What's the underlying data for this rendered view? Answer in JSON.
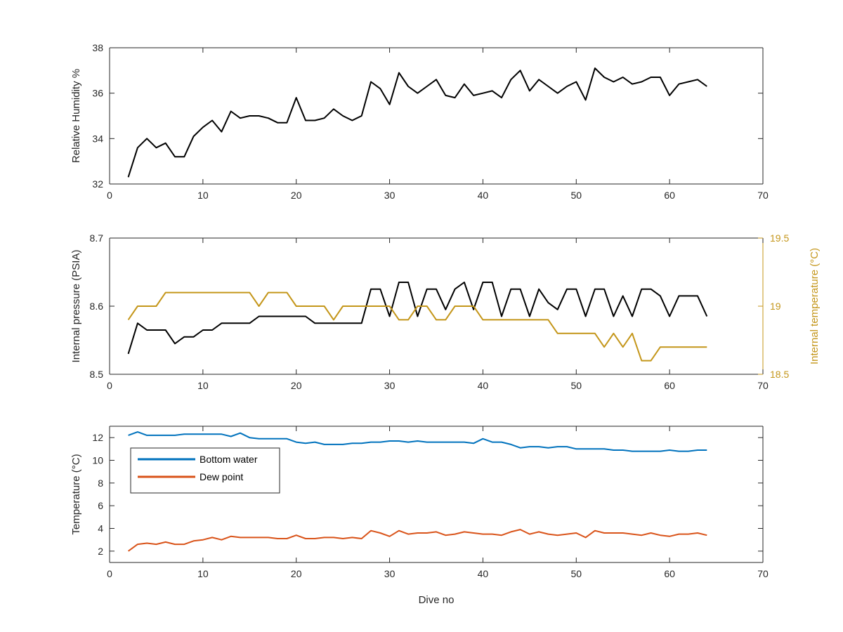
{
  "chart_data": [
    {
      "type": "line",
      "title": "",
      "xlabel": "",
      "ylabel": "Relative Humidity %",
      "xlim": [
        0,
        70
      ],
      "ylim": [
        32,
        38
      ],
      "xticks": [
        0,
        10,
        20,
        30,
        40,
        50,
        60,
        70
      ],
      "yticks": [
        32,
        34,
        36,
        38
      ],
      "grid": false,
      "series": [
        {
          "color": "#000000",
          "x": [
            2,
            3,
            4,
            5,
            6,
            7,
            8,
            9,
            10,
            11,
            12,
            13,
            14,
            15,
            16,
            17,
            18,
            19,
            20,
            21,
            22,
            23,
            24,
            25,
            26,
            27,
            28,
            29,
            30,
            31,
            32,
            33,
            34,
            35,
            36,
            37,
            38,
            39,
            40,
            41,
            42,
            43,
            44,
            45,
            46,
            47,
            48,
            49,
            50,
            51,
            52,
            53,
            54,
            55,
            56,
            57,
            58,
            59,
            60,
            61,
            62,
            63,
            64
          ],
          "y": [
            32.3,
            33.6,
            34.0,
            33.6,
            33.8,
            33.2,
            33.2,
            34.1,
            34.5,
            34.8,
            34.3,
            35.2,
            34.9,
            35.0,
            35.0,
            34.9,
            34.7,
            34.7,
            35.8,
            34.8,
            34.8,
            34.9,
            35.3,
            35.0,
            34.8,
            35.0,
            36.5,
            36.2,
            35.5,
            36.9,
            36.3,
            36.0,
            36.3,
            36.6,
            35.9,
            35.8,
            36.4,
            35.9,
            36.0,
            36.1,
            35.8,
            36.6,
            37.0,
            36.1,
            36.6,
            36.3,
            36.0,
            36.3,
            36.5,
            35.7,
            37.1,
            36.7,
            36.5,
            36.7,
            36.4,
            36.5,
            36.7,
            36.7,
            35.9,
            36.4,
            36.5,
            36.6,
            36.3
          ]
        }
      ]
    },
    {
      "type": "line",
      "title": "",
      "xlabel": "",
      "ylabel": "Internal pressure (PSIA)",
      "ylabel_right": "Internal temperature (°C)",
      "xlim": [
        0,
        70
      ],
      "ylim": [
        8.5,
        8.7
      ],
      "ylim_right": [
        18.5,
        19.5
      ],
      "xticks": [
        0,
        10,
        20,
        30,
        40,
        50,
        60,
        70
      ],
      "yticks": [
        8.5,
        8.6,
        8.7
      ],
      "yticks_right": [
        18.5,
        19,
        19.5
      ],
      "ytick_labels_right": [
        "18.5",
        "19",
        "19.5"
      ],
      "grid": false,
      "series": [
        {
          "axis": "left",
          "color": "#000000",
          "x": [
            2,
            3,
            4,
            5,
            6,
            7,
            8,
            9,
            10,
            11,
            12,
            13,
            14,
            15,
            16,
            17,
            18,
            19,
            20,
            21,
            22,
            23,
            24,
            25,
            26,
            27,
            28,
            29,
            30,
            31,
            32,
            33,
            34,
            35,
            36,
            37,
            38,
            39,
            40,
            41,
            42,
            43,
            44,
            45,
            46,
            47,
            48,
            49,
            50,
            51,
            52,
            53,
            54,
            55,
            56,
            57,
            58,
            59,
            60,
            61,
            62,
            63,
            64
          ],
          "y": [
            8.53,
            8.575,
            8.565,
            8.565,
            8.565,
            8.545,
            8.555,
            8.555,
            8.565,
            8.565,
            8.575,
            8.575,
            8.575,
            8.575,
            8.585,
            8.585,
            8.585,
            8.585,
            8.585,
            8.585,
            8.575,
            8.575,
            8.575,
            8.575,
            8.575,
            8.575,
            8.625,
            8.625,
            8.585,
            8.635,
            8.635,
            8.585,
            8.625,
            8.625,
            8.595,
            8.625,
            8.635,
            8.595,
            8.635,
            8.635,
            8.585,
            8.625,
            8.625,
            8.585,
            8.625,
            8.605,
            8.595,
            8.625,
            8.625,
            8.585,
            8.625,
            8.625,
            8.585,
            8.615,
            8.585,
            8.625,
            8.625,
            8.615,
            8.585,
            8.615,
            8.615,
            8.615,
            8.585
          ]
        },
        {
          "axis": "right",
          "color": "#C4961A",
          "x": [
            2,
            3,
            4,
            5,
            6,
            7,
            8,
            9,
            10,
            11,
            12,
            13,
            14,
            15,
            16,
            17,
            18,
            19,
            20,
            21,
            22,
            23,
            24,
            25,
            26,
            27,
            28,
            29,
            30,
            31,
            32,
            33,
            34,
            35,
            36,
            37,
            38,
            39,
            40,
            41,
            42,
            43,
            44,
            45,
            46,
            47,
            48,
            49,
            50,
            51,
            52,
            53,
            54,
            55,
            56,
            57,
            58,
            59,
            60,
            61,
            62,
            63,
            64
          ],
          "y": [
            18.9,
            19.0,
            19.0,
            19.0,
            19.1,
            19.1,
            19.1,
            19.1,
            19.1,
            19.1,
            19.1,
            19.1,
            19.1,
            19.1,
            19.0,
            19.1,
            19.1,
            19.1,
            19.0,
            19.0,
            19.0,
            19.0,
            18.9,
            19.0,
            19.0,
            19.0,
            19.0,
            19.0,
            19.0,
            18.9,
            18.9,
            19.0,
            19.0,
            18.9,
            18.9,
            19.0,
            19.0,
            19.0,
            18.9,
            18.9,
            18.9,
            18.9,
            18.9,
            18.9,
            18.9,
            18.9,
            18.8,
            18.8,
            18.8,
            18.8,
            18.8,
            18.7,
            18.8,
            18.7,
            18.8,
            18.6,
            18.6,
            18.7,
            18.7,
            18.7,
            18.7,
            18.7,
            18.7
          ]
        }
      ]
    },
    {
      "type": "line",
      "title": "",
      "xlabel": "Dive no",
      "ylabel": "Temperature (°C)",
      "xlim": [
        0,
        70
      ],
      "ylim": [
        1,
        13
      ],
      "xticks": [
        0,
        10,
        20,
        30,
        40,
        50,
        60,
        70
      ],
      "yticks": [
        2,
        4,
        6,
        8,
        10,
        12
      ],
      "grid": false,
      "legend_position": "top-left",
      "series": [
        {
          "name": "Bottom water",
          "color": "#0072BD",
          "x": [
            2,
            3,
            4,
            5,
            6,
            7,
            8,
            9,
            10,
            11,
            12,
            13,
            14,
            15,
            16,
            17,
            18,
            19,
            20,
            21,
            22,
            23,
            24,
            25,
            26,
            27,
            28,
            29,
            30,
            31,
            32,
            33,
            34,
            35,
            36,
            37,
            38,
            39,
            40,
            41,
            42,
            43,
            44,
            45,
            46,
            47,
            48,
            49,
            50,
            51,
            52,
            53,
            54,
            55,
            56,
            57,
            58,
            59,
            60,
            61,
            62,
            63,
            64
          ],
          "y": [
            12.2,
            12.5,
            12.2,
            12.2,
            12.2,
            12.2,
            12.3,
            12.3,
            12.3,
            12.3,
            12.3,
            12.1,
            12.4,
            12.0,
            11.9,
            11.9,
            11.9,
            11.9,
            11.6,
            11.5,
            11.6,
            11.4,
            11.4,
            11.4,
            11.5,
            11.5,
            11.6,
            11.6,
            11.7,
            11.7,
            11.6,
            11.7,
            11.6,
            11.6,
            11.6,
            11.6,
            11.6,
            11.5,
            11.9,
            11.6,
            11.6,
            11.4,
            11.1,
            11.2,
            11.2,
            11.1,
            11.2,
            11.2,
            11.0,
            11.0,
            11.0,
            11.0,
            10.9,
            10.9,
            10.8,
            10.8,
            10.8,
            10.8,
            10.9,
            10.8,
            10.8,
            10.9,
            10.9
          ]
        },
        {
          "name": "Dew point",
          "color": "#D95319",
          "x": [
            2,
            3,
            4,
            5,
            6,
            7,
            8,
            9,
            10,
            11,
            12,
            13,
            14,
            15,
            16,
            17,
            18,
            19,
            20,
            21,
            22,
            23,
            24,
            25,
            26,
            27,
            28,
            29,
            30,
            31,
            32,
            33,
            34,
            35,
            36,
            37,
            38,
            39,
            40,
            41,
            42,
            43,
            44,
            45,
            46,
            47,
            48,
            49,
            50,
            51,
            52,
            53,
            54,
            55,
            56,
            57,
            58,
            59,
            60,
            61,
            62,
            63,
            64
          ],
          "y": [
            2.0,
            2.6,
            2.7,
            2.6,
            2.8,
            2.6,
            2.6,
            2.9,
            3.0,
            3.2,
            3.0,
            3.3,
            3.2,
            3.2,
            3.2,
            3.2,
            3.1,
            3.1,
            3.4,
            3.1,
            3.1,
            3.2,
            3.2,
            3.1,
            3.2,
            3.1,
            3.8,
            3.6,
            3.3,
            3.8,
            3.5,
            3.6,
            3.6,
            3.7,
            3.4,
            3.5,
            3.7,
            3.6,
            3.5,
            3.5,
            3.4,
            3.7,
            3.9,
            3.5,
            3.7,
            3.5,
            3.4,
            3.5,
            3.6,
            3.2,
            3.8,
            3.6,
            3.6,
            3.6,
            3.5,
            3.4,
            3.6,
            3.4,
            3.3,
            3.5,
            3.5,
            3.6,
            3.4
          ]
        }
      ]
    }
  ]
}
